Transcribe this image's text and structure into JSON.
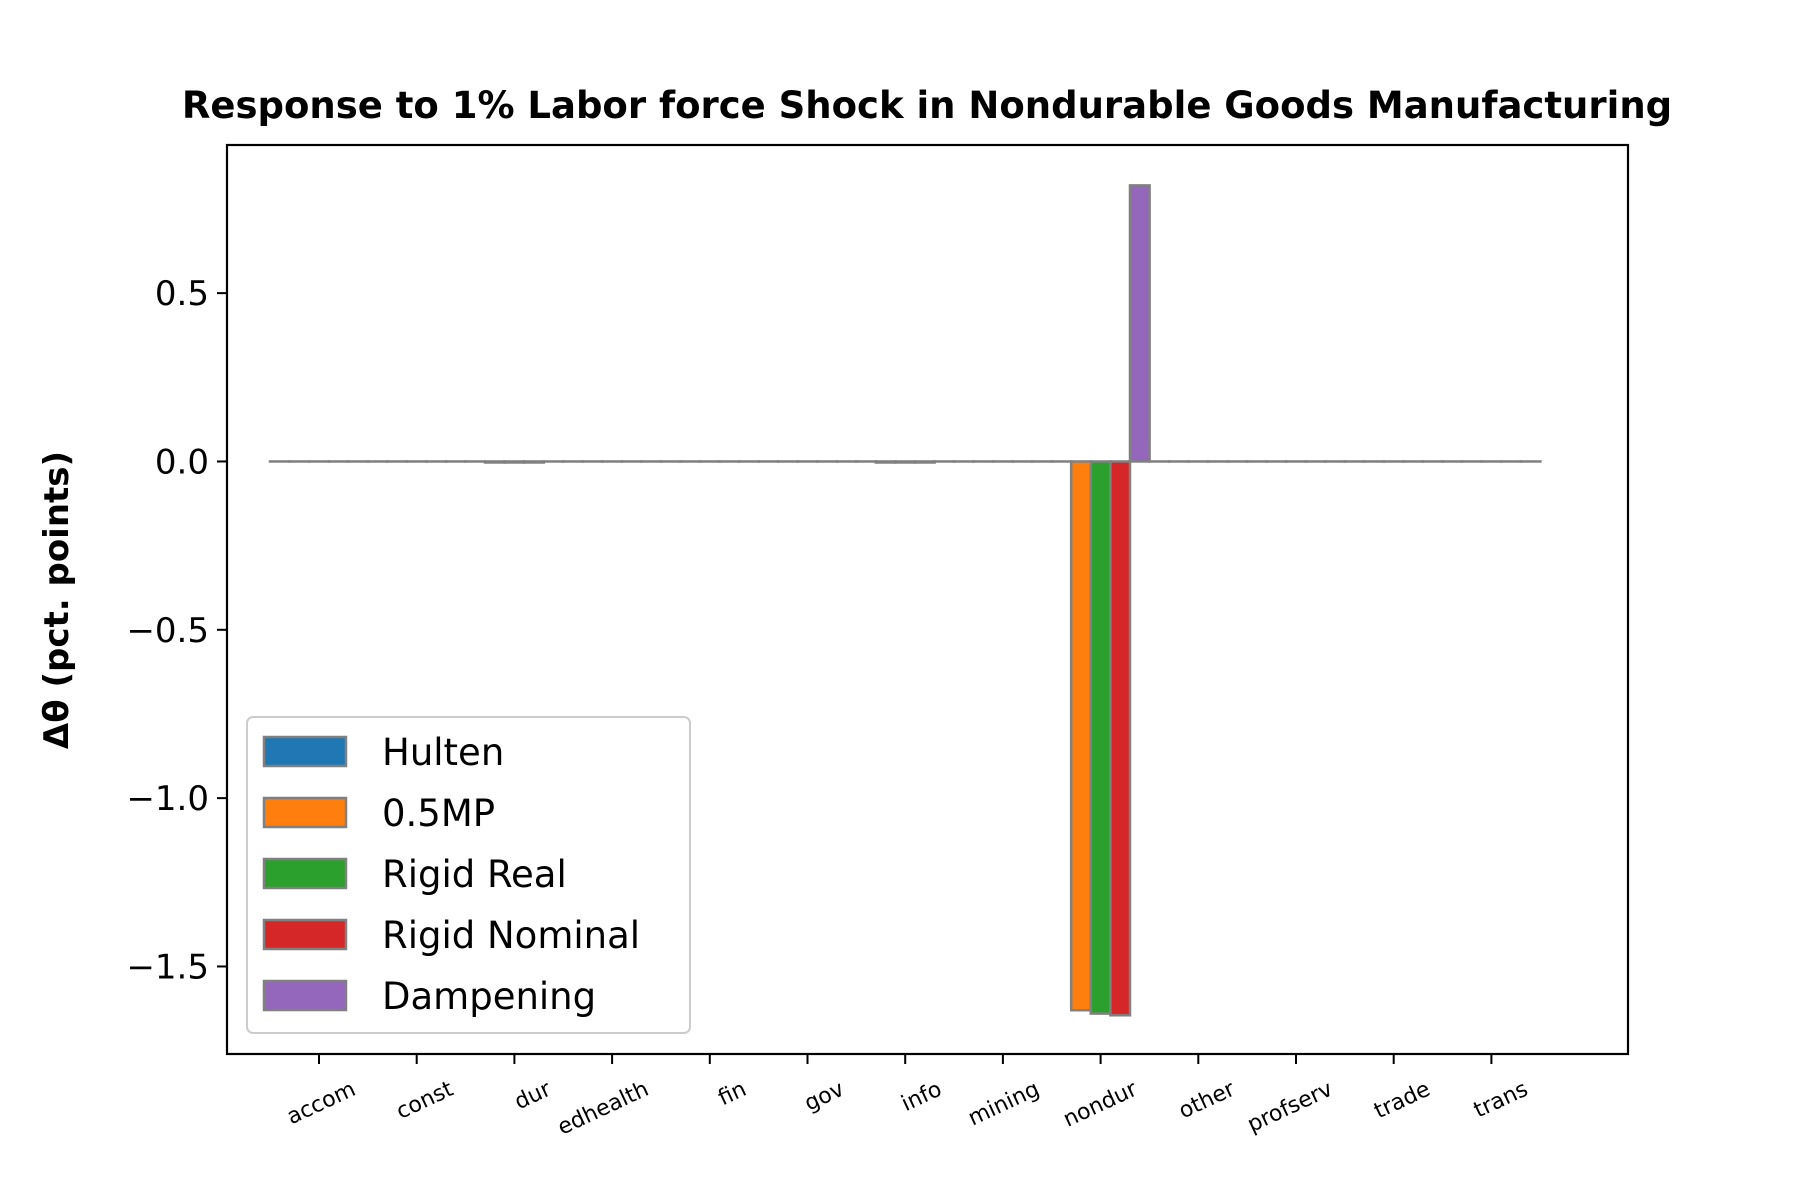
{
  "chart_data": {
    "type": "bar",
    "title": "Response to 1% Labor force Shock in Nondurable Goods Manufacturing",
    "xlabel": "",
    "ylabel": "Δθ  (pct. points)",
    "categories": [
      "accom",
      "const",
      "dur",
      "edhealth",
      "fin",
      "gov",
      "info",
      "mining",
      "nondur",
      "other",
      "profserv",
      "trade",
      "trans"
    ],
    "ylim": [
      -1.76,
      0.94
    ],
    "yticks": [
      0.5,
      0.0,
      -0.5,
      -1.0,
      -1.5
    ],
    "ytick_labels": [
      "0.5",
      "0.0",
      "−0.5",
      "−1.0",
      "−1.5"
    ],
    "grid": false,
    "legend_position": "lower-left",
    "bar_edge_color": "#808080",
    "series": [
      {
        "name": "Hulten",
        "color": "#1f77b4",
        "values": [
          0,
          0,
          0,
          0,
          0,
          0,
          0,
          0,
          0,
          0,
          0,
          0,
          0
        ]
      },
      {
        "name": "0.5MP",
        "color": "#ff7f0e",
        "values": [
          0,
          0,
          -0.003,
          0,
          0,
          0,
          -0.003,
          0,
          -1.63,
          0,
          0,
          0,
          0
        ]
      },
      {
        "name": "Rigid Real",
        "color": "#2ca02c",
        "values": [
          0,
          0,
          -0.003,
          0,
          0,
          0,
          -0.003,
          0,
          -1.64,
          0,
          0,
          0,
          0
        ]
      },
      {
        "name": "Rigid Nominal",
        "color": "#d62728",
        "values": [
          0,
          0,
          -0.003,
          0,
          0,
          0,
          -0.003,
          0,
          -1.645,
          0,
          0,
          0,
          0
        ]
      },
      {
        "name": "Dampening",
        "color": "#9467bd",
        "values": [
          0,
          0,
          0,
          0,
          0,
          0,
          0,
          0,
          0.82,
          0,
          0,
          0,
          0
        ]
      }
    ]
  }
}
